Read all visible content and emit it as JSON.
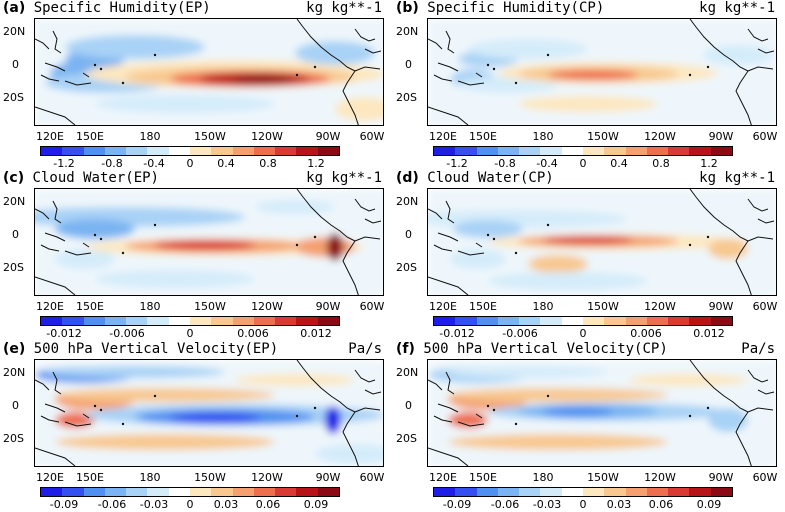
{
  "figure": {
    "lat_labels": [
      "20N",
      "0",
      "20S"
    ],
    "lon_labels": [
      "120E",
      "150E",
      "180",
      "150W",
      "120W",
      "90W",
      "60W"
    ],
    "colormap": [
      "#1e1ee6",
      "#3550f0",
      "#5090f0",
      "#7ab4f2",
      "#a8d2f6",
      "#d4ecfa",
      "#ffffff",
      "#fde7bf",
      "#f8c890",
      "#f4a070",
      "#ee6e50",
      "#d93a34",
      "#b81418",
      "#8b0a14"
    ],
    "panels": [
      {
        "label": "(a)",
        "title": "Specific Humidity(EP)",
        "units": "kg kg**-1",
        "colorbar_ticks": [
          "-1.2",
          "-0.8",
          "-0.4",
          "0",
          "0.4",
          "0.8",
          "1.2"
        ]
      },
      {
        "label": "(b)",
        "title": "Specific Humidity(CP)",
        "units": "kg kg**-1",
        "colorbar_ticks": [
          "-1.2",
          "-0.8",
          "-0.4",
          "0",
          "0.4",
          "0.8",
          "1.2"
        ]
      },
      {
        "label": "(c)",
        "title": "Cloud Water(EP)",
        "units": "kg kg**-1",
        "colorbar_ticks": [
          "-0.012",
          "-0.006",
          "0",
          "0.006",
          "0.012"
        ]
      },
      {
        "label": "(d)",
        "title": "Cloud Water(CP)",
        "units": "kg kg**-1",
        "colorbar_ticks": [
          "-0.012",
          "-0.006",
          "0",
          "0.006",
          "0.012"
        ]
      },
      {
        "label": "(e)",
        "title": "500 hPa Vertical Velocity(EP)",
        "units": "Pa/s",
        "colorbar_ticks": [
          "-0.09",
          "-0.06",
          "-0.03",
          "0",
          "0.03",
          "0.06",
          "0.09"
        ]
      },
      {
        "label": "(f)",
        "title": "500 hPa Vertical Velocity(CP)",
        "units": "Pa/s",
        "colorbar_ticks": [
          "-0.09",
          "-0.06",
          "-0.03",
          "0",
          "0.03",
          "0.06",
          "0.09"
        ]
      }
    ]
  }
}
